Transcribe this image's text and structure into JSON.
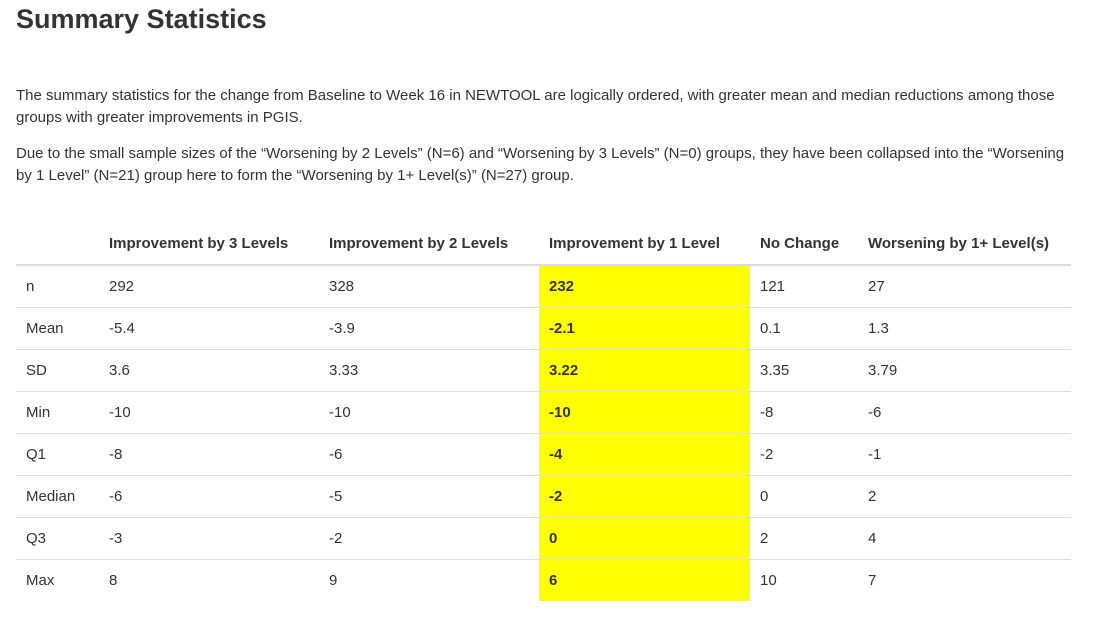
{
  "title": "Summary Statistics",
  "paragraphs": [
    "The summary statistics for the change from Baseline to Week 16 in NEWTOOL are logically ordered, with greater mean and median reductions among those groups with greater improvements in PGIS.",
    "Due to the small sample sizes of the “Worsening by 2 Levels” (N=6) and “Worsening by 3 Levels” (N=0) groups, they have been collapsed into the “Worsening by 1 Level” (N=21) group here to form the “Worsening by 1+ Level(s)” (N=27) group."
  ],
  "table": {
    "headers": [
      "",
      "Improvement by 3 Levels",
      "Improvement by 2 Levels",
      "Improvement by 1 Level",
      "No Change",
      "Worsening by 1+ Level(s)"
    ],
    "highlight_column": 3,
    "highlight_color": "#ffff00",
    "rows": [
      [
        "n",
        "292",
        "328",
        "232",
        "121",
        "27"
      ],
      [
        "Mean",
        "-5.4",
        "-3.9",
        "-2.1",
        "0.1",
        "1.3"
      ],
      [
        "SD",
        "3.6",
        "3.33",
        "3.22",
        "3.35",
        "3.79"
      ],
      [
        "Min",
        "-10",
        "-10",
        "-10",
        "-8",
        "-6"
      ],
      [
        "Q1",
        "-8",
        "-6",
        "-4",
        "-2",
        "-1"
      ],
      [
        "Median",
        "-6",
        "-5",
        "-2",
        "0",
        "2"
      ],
      [
        "Q3",
        "-3",
        "-2",
        "0",
        "2",
        "4"
      ],
      [
        "Max",
        "8",
        "9",
        "6",
        "10",
        "7"
      ]
    ]
  }
}
